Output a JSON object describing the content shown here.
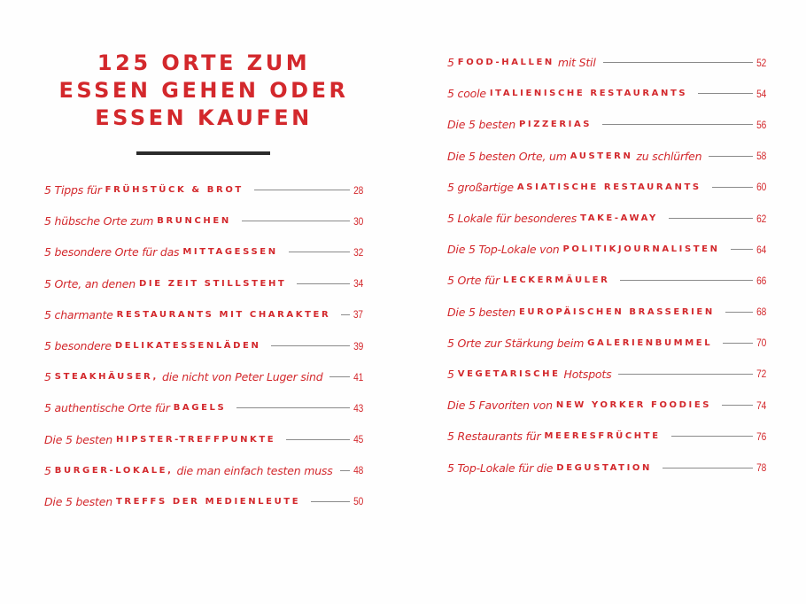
{
  "title": {
    "lines": [
      "125 ORTE ZUM",
      "ESSEN GEHEN ODER",
      "ESSEN KAUFEN"
    ]
  },
  "colors": {
    "accent": "#d3282c",
    "rule": "#2b2b2b",
    "leader": "#8a8a8a"
  },
  "left_entries": [
    {
      "pre": "5 Tipps für",
      "caps": "FRÜHSTÜCK & BROT",
      "post": "",
      "page": "28"
    },
    {
      "pre": "5 hübsche Orte zum",
      "caps": "BRUNCHEN",
      "post": "",
      "page": "30"
    },
    {
      "pre": "5 besondere Orte für das",
      "caps": "MITTAGESSEN",
      "post": "",
      "page": "32"
    },
    {
      "pre": "5 Orte, an denen",
      "caps": "DIE ZEIT STILLSTEHT",
      "post": "",
      "page": "34"
    },
    {
      "pre": "5 charmante",
      "caps": "RESTAURANTS MIT CHARAKTER",
      "post": "",
      "page": "37"
    },
    {
      "pre": "5 besondere",
      "caps": "DELIKATESSENLÄDEN",
      "post": "",
      "page": "39"
    },
    {
      "pre": "5",
      "caps": "STEAKHÄUSER,",
      "post": "die nicht von Peter Luger sind",
      "page": "41"
    },
    {
      "pre": "5 authentische Orte für",
      "caps": "BAGELS",
      "post": "",
      "page": "43"
    },
    {
      "pre": "Die 5 besten",
      "caps": "HIPSTER-TREFFPUNKTE",
      "post": "",
      "page": "45"
    },
    {
      "pre": "5",
      "caps": "BURGER-LOKALE,",
      "post": "die man einfach testen muss",
      "page": "48"
    },
    {
      "pre": "Die 5 besten",
      "caps": "TREFFS DER MEDIENLEUTE",
      "post": "",
      "page": "50"
    }
  ],
  "right_entries": [
    {
      "pre": "5",
      "caps": "FOOD-HALLEN",
      "post": "mit Stil",
      "page": "52"
    },
    {
      "pre": "5 coole",
      "caps": "ITALIENISCHE RESTAURANTS",
      "post": "",
      "page": "54"
    },
    {
      "pre": "Die 5 besten",
      "caps": "PIZZERIAS",
      "post": "",
      "page": "56"
    },
    {
      "pre": "Die 5 besten Orte, um",
      "caps": "AUSTERN",
      "post": "zu schlürfen",
      "page": "58"
    },
    {
      "pre": "5 großartige",
      "caps": "ASIATISCHE RESTAURANTS",
      "post": "",
      "page": "60"
    },
    {
      "pre": "5 Lokale für besonderes",
      "caps": "TAKE-AWAY",
      "post": "",
      "page": "62"
    },
    {
      "pre": "Die 5 Top-Lokale von",
      "caps": "POLITIKJOURNALISTEN",
      "post": "",
      "page": "64"
    },
    {
      "pre": "5 Orte für",
      "caps": "LECKERMÄULER",
      "post": "",
      "page": "66"
    },
    {
      "pre": "Die 5 besten",
      "caps": "EUROPÄISCHEN BRASSERIEN",
      "post": "",
      "page": "68"
    },
    {
      "pre": "5 Orte zur Stärkung beim",
      "caps": "GALERIENBUMMEL",
      "post": "",
      "page": "70"
    },
    {
      "pre": "5",
      "caps": "VEGETARISCHE",
      "post": "Hotspots",
      "page": "72"
    },
    {
      "pre": "Die 5 Favoriten von",
      "caps": "NEW YORKER FOODIES",
      "post": "",
      "page": "74"
    },
    {
      "pre": "5 Restaurants für",
      "caps": "MEERESFRÜCHTE",
      "post": "",
      "page": "76"
    },
    {
      "pre": "5 Top-Lokale für die",
      "caps": "DEGUSTATION",
      "post": "",
      "page": "78"
    }
  ]
}
